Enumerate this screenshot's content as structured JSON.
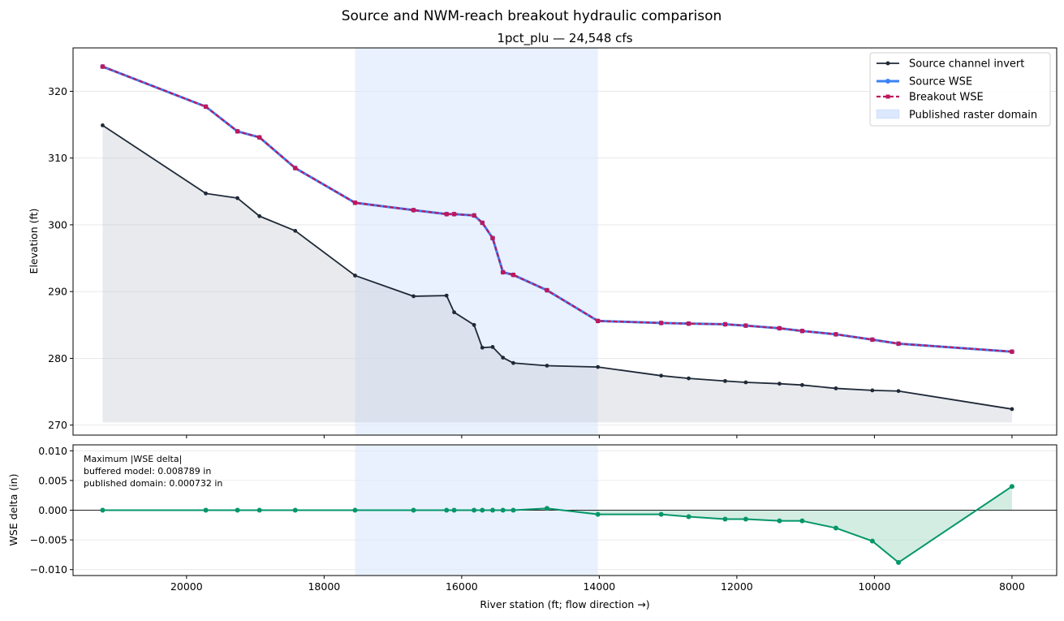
{
  "figure": {
    "suptitle": "Source and NWM-reach breakout hydraulic comparison",
    "subtitle": "1pct_plu — 24,548 cfs"
  },
  "chart_data": [
    {
      "type": "line",
      "panel": "top",
      "title": "1pct_plu — 24,548 cfs",
      "ylabel": "Elevation (ft)",
      "xlim": [
        21650,
        7350
      ],
      "ylim": [
        268.5,
        326.5
      ],
      "yticks": [
        270,
        280,
        290,
        300,
        310,
        320
      ],
      "grid": true,
      "legend_position": "top-right",
      "shaded_domain": {
        "name": "Published raster domain",
        "x_from": 17550,
        "x_to": 14020,
        "color": "#dbe8fd"
      },
      "series": [
        {
          "name": "Source channel invert",
          "color": "#1f2937",
          "fill_to": 270.4,
          "fill_color": "#c6cad4",
          "x": [
            21220,
            19720,
            19260,
            18940,
            18420,
            17550,
            16700,
            16220,
            16110,
            15820,
            15700,
            15550,
            15400,
            15250,
            14760,
            14020,
            13100,
            12700,
            12170,
            11870,
            11380,
            11050,
            10560,
            10030,
            9650,
            8000
          ],
          "y": [
            314.9,
            304.7,
            304.0,
            301.3,
            299.1,
            292.4,
            289.3,
            289.4,
            286.9,
            285.0,
            281.6,
            281.7,
            280.1,
            279.3,
            278.9,
            278.7,
            277.4,
            277.0,
            276.6,
            276.4,
            276.2,
            276.0,
            275.5,
            275.2,
            275.1,
            272.4
          ]
        },
        {
          "name": "Source WSE",
          "color": "#3b82f6",
          "x": [
            21220,
            19720,
            19260,
            18940,
            18420,
            17550,
            16700,
            16220,
            16110,
            15820,
            15700,
            15550,
            15400,
            15250,
            14760,
            14020,
            13100,
            12700,
            12170,
            11870,
            11380,
            11050,
            10560,
            10030,
            9650,
            8000
          ],
          "y": [
            323.7,
            317.7,
            314.0,
            313.1,
            308.5,
            303.3,
            302.2,
            301.6,
            301.6,
            301.4,
            300.3,
            298.0,
            292.9,
            292.5,
            290.2,
            285.6,
            285.3,
            285.2,
            285.1,
            284.9,
            284.5,
            284.1,
            283.6,
            282.8,
            282.2,
            281.0
          ]
        },
        {
          "name": "Breakout WSE",
          "color": "#be185d",
          "x": [
            21220,
            19720,
            19260,
            18940,
            18420,
            17550,
            16700,
            16220,
            16110,
            15820,
            15700,
            15550,
            15400,
            15250,
            14760,
            14020,
            13100,
            12700,
            12170,
            11870,
            11380,
            11050,
            10560,
            10030,
            9650,
            8000
          ],
          "y": [
            323.7,
            317.7,
            314.0,
            313.1,
            308.5,
            303.3,
            302.2,
            301.6,
            301.6,
            301.4,
            300.3,
            298.0,
            292.9,
            292.5,
            290.2,
            285.6,
            285.3,
            285.2,
            285.1,
            284.9,
            284.5,
            284.1,
            283.6,
            282.8,
            282.2,
            281.0
          ]
        }
      ]
    },
    {
      "type": "line",
      "panel": "bottom",
      "xlabel": "River station (ft; flow direction →)",
      "ylabel": "WSE delta (in)",
      "xlim": [
        21650,
        7350
      ],
      "ylim": [
        -0.011,
        0.011
      ],
      "xticks": [
        20000,
        18000,
        16000,
        14000,
        12000,
        10000,
        8000
      ],
      "yticks": [
        -0.01,
        -0.005,
        0.0,
        0.005,
        0.01
      ],
      "ytick_labels": [
        "−0.010",
        "−0.005",
        "0.000",
        "0.005",
        "0.010"
      ],
      "grid": true,
      "shaded_domain": {
        "x_from": 17550,
        "x_to": 14020,
        "color": "#dbe8fd"
      },
      "annotation": [
        "Maximum |WSE delta|",
        "buffered model: 0.008789 in",
        "published domain: 0.000732 in"
      ],
      "series": [
        {
          "name": "WSE delta",
          "color": "#059669",
          "fill_to": 0,
          "fill_color": "#a7dcc8",
          "x": [
            21220,
            19720,
            19260,
            18940,
            18420,
            17550,
            16700,
            16220,
            16110,
            15820,
            15700,
            15550,
            15400,
            15250,
            14760,
            14020,
            13100,
            12700,
            12170,
            11870,
            11380,
            11050,
            10560,
            10030,
            9650,
            8000
          ],
          "y": [
            0.0,
            0.0,
            0.0,
            0.0,
            0.0,
            0.0,
            0.0,
            0.0,
            0.0,
            0.0,
            0.0,
            0.0,
            0.0,
            0.0,
            0.0003,
            -0.0007,
            -0.0007,
            -0.0011,
            -0.0015,
            -0.0015,
            -0.0018,
            -0.0018,
            -0.003,
            -0.0052,
            -0.0088,
            0.004
          ]
        }
      ]
    }
  ]
}
